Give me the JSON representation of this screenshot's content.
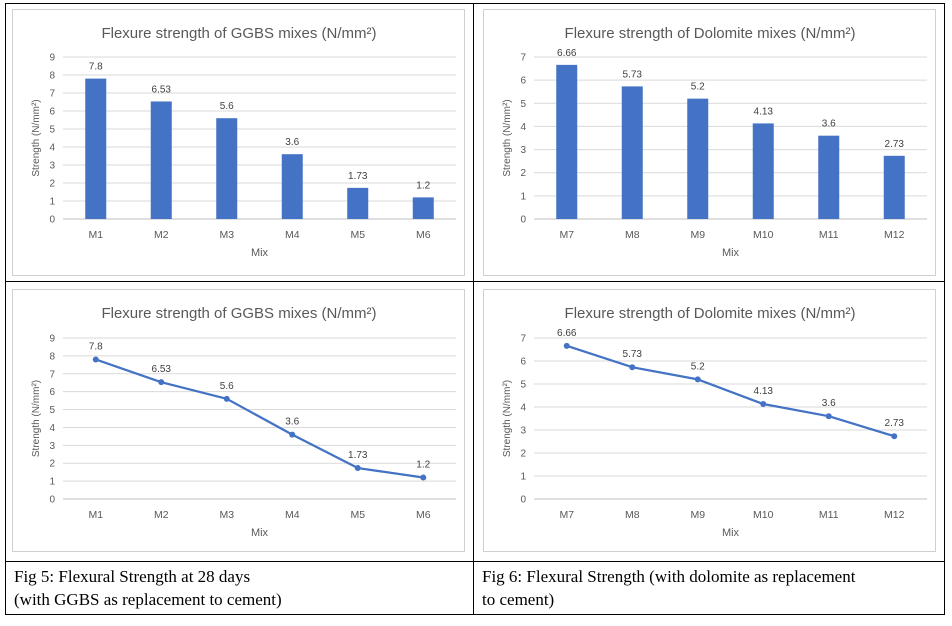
{
  "chart_data": [
    {
      "type": "bar",
      "title": "Flexure strength of GGBS mixes (N/mm²)",
      "xlabel": "Mix",
      "ylabel": "Strength (N/mm²)",
      "categories": [
        "M1",
        "M2",
        "M3",
        "M4",
        "M5",
        "M6"
      ],
      "values": [
        7.8,
        6.53,
        5.6,
        3.6,
        1.73,
        1.2
      ],
      "data_labels": [
        "7.8",
        "6.53",
        "5.6",
        "3.6",
        "1.73",
        "1.2"
      ],
      "y_ticks": [
        "0",
        "1",
        "2",
        "3",
        "4",
        "5",
        "6",
        "7",
        "8",
        "9"
      ],
      "ylim": [
        0,
        9
      ],
      "grid": true,
      "color": "#4472c4"
    },
    {
      "type": "bar",
      "title": "Flexure strength of Dolomite mixes (N/mm²)",
      "xlabel": "Mix",
      "ylabel": "Strength (N/mm²)",
      "categories": [
        "M7",
        "M8",
        "M9",
        "M10",
        "M11",
        "M12"
      ],
      "values": [
        6.66,
        5.73,
        5.2,
        4.13,
        3.6,
        2.73
      ],
      "data_labels": [
        "6.66",
        "5.73",
        "5.2",
        "4.13",
        "3.6",
        "2.73"
      ],
      "y_ticks": [
        "0",
        "1",
        "2",
        "3",
        "4",
        "5",
        "6",
        "7"
      ],
      "ylim": [
        0,
        7
      ],
      "grid": true,
      "color": "#4472c4"
    },
    {
      "type": "line",
      "title": "Flexure strength of GGBS mixes (N/mm²)",
      "xlabel": "Mix",
      "ylabel": "Strength (N/mm²)",
      "categories": [
        "M1",
        "M2",
        "M3",
        "M4",
        "M5",
        "M6"
      ],
      "values": [
        7.8,
        6.53,
        5.6,
        3.6,
        1.73,
        1.2
      ],
      "data_labels": [
        "7.8",
        "6.53",
        "5.6",
        "3.6",
        "1.73",
        "1.2"
      ],
      "y_ticks": [
        "0",
        "1",
        "2",
        "3",
        "4",
        "5",
        "6",
        "7",
        "8",
        "9"
      ],
      "ylim": [
        0,
        9
      ],
      "grid": true,
      "color": "#4472c4"
    },
    {
      "type": "line",
      "title": "Flexure strength of Dolomite mixes (N/mm²)",
      "xlabel": "Mix",
      "ylabel": "Strength (N/mm²)",
      "categories": [
        "M7",
        "M8",
        "M9",
        "M10",
        "M11",
        "M12"
      ],
      "values": [
        6.66,
        5.73,
        5.2,
        4.13,
        3.6,
        2.73
      ],
      "data_labels": [
        "6.66",
        "5.73",
        "5.2",
        "4.13",
        "3.6",
        "2.73"
      ],
      "y_ticks": [
        "0",
        "1",
        "2",
        "3",
        "4",
        "5",
        "6",
        "7"
      ],
      "ylim": [
        0,
        7
      ],
      "grid": true,
      "color": "#4472c4"
    }
  ],
  "captions": {
    "fig5_line1": "Fig 5: Flexural Strength at 28 days",
    "fig5_line2": "(with GGBS as replacement to cement)",
    "fig6_line1": "Fig 6: Flexural Strength (with dolomite as replacement",
    "fig6_line2": "to cement)"
  }
}
